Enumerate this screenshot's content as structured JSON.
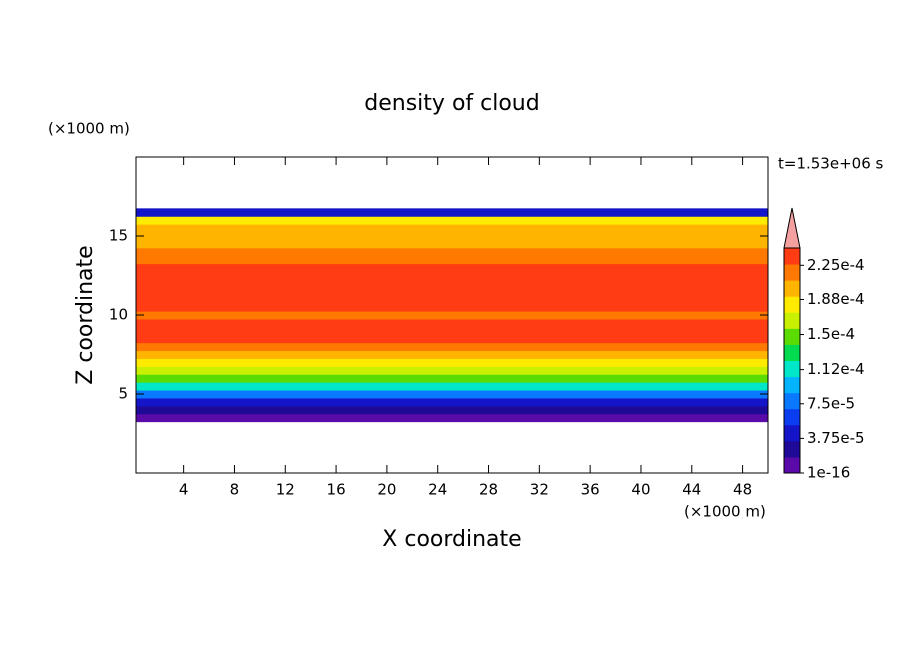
{
  "chart_data": {
    "type": "contour",
    "title": "density of cloud",
    "x_label": "X coordinate",
    "y_label": "Z coordinate",
    "x_unit": "(×1000 m)",
    "y_unit": "(×1000 m)",
    "annotation": "t=1.53e+06 s",
    "xlim": [
      0.25,
      50
    ],
    "xticks": [
      4,
      8,
      12,
      16,
      20,
      24,
      28,
      32,
      36,
      40,
      44,
      48
    ],
    "ylim": [
      0,
      20
    ],
    "yticks": [
      5,
      10,
      15
    ],
    "profile": {
      "x": [
        0.25,
        50
      ],
      "z": [
        3.5,
        4,
        4.5,
        5,
        5.5,
        6,
        6.5,
        7,
        7.5,
        8,
        8.5,
        9,
        9.5,
        10,
        10.5,
        11,
        11.5,
        12,
        12.5,
        13,
        13.5,
        14,
        14.5,
        15,
        15.5,
        16,
        16.5
      ],
      "values": [
        1e-05,
        2.5e-05,
        4.5e-05,
        8e-05,
        0.00012,
        0.00015,
        0.00017,
        0.00019,
        0.000205,
        0.000215,
        0.000228,
        0.00023,
        0.00023,
        0.00022,
        0.00023,
        0.00023,
        0.000232,
        0.00023,
        0.00023,
        0.00023,
        0.000226,
        0.000216,
        0.000208,
        0.000205,
        0.0002,
        0.00018,
        4e-05
      ]
    },
    "colorbar": {
      "clim": [
        1e-16,
        0.00024375
      ],
      "ticks": [
        {
          "value": 1e-16,
          "label": "1e-16"
        },
        {
          "value": 3.75e-05,
          "label": "3.75e-5"
        },
        {
          "value": 7.5e-05,
          "label": "7.5e-5"
        },
        {
          "value": 0.000112,
          "label": "1.12e-4"
        },
        {
          "value": 0.00015,
          "label": "1.5e-4"
        },
        {
          "value": 0.000188,
          "label": "1.88e-4"
        },
        {
          "value": 0.000225,
          "label": "2.25e-4"
        }
      ],
      "colors": [
        "#5a0aa8",
        "#1e0a96",
        "#1414c8",
        "#0a3cf0",
        "#0a78ff",
        "#00b4ff",
        "#00e6c8",
        "#00dc50",
        "#5adc00",
        "#c8f000",
        "#ffeb00",
        "#ffb400",
        "#ff7800",
        "#ff3c14"
      ],
      "over_color": "#f4a0a0"
    }
  }
}
